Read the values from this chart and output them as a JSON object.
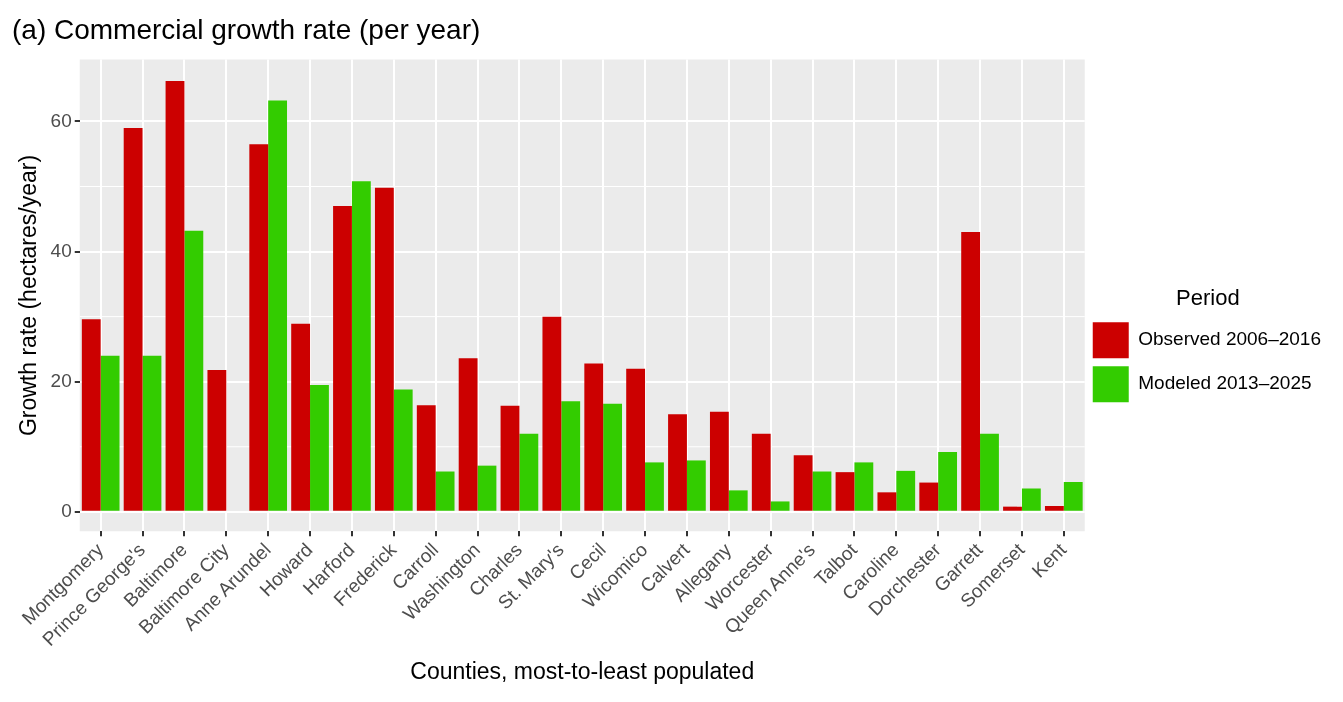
{
  "chart_data": {
    "type": "bar",
    "title": "(a) Commercial growth rate (per year)",
    "xlabel": "Counties, most-to-least populated",
    "ylabel": "Growth rate (hectares/year)",
    "legend_title": "Period",
    "categories": [
      "Montgomery",
      "Prince George's",
      "Baltimore",
      "Baltimore City",
      "Anne Arundel",
      "Howard",
      "Harford",
      "Frederick",
      "Carroll",
      "Washington",
      "Charles",
      "St. Mary's",
      "Cecil",
      "Wicomico",
      "Calvert",
      "Allegany",
      "Worcester",
      "Queen Anne's",
      "Talbot",
      "Caroline",
      "Dorchester",
      "Garrett",
      "Somerset",
      "Kent"
    ],
    "series": [
      {
        "name": "Observed 2006–2016",
        "color": "#cc0000",
        "values": [
          29.6,
          59,
          66.2,
          21.8,
          56.5,
          28.9,
          47,
          49.8,
          16.4,
          23.6,
          16.3,
          30,
          22.8,
          22,
          15,
          15.4,
          12,
          8.7,
          6.1,
          3,
          4.5,
          43,
          0.8,
          0.9
        ]
      },
      {
        "name": "Modeled 2013–2025",
        "color": "#33cc00",
        "values": [
          24,
          24,
          43.2,
          null,
          63.2,
          19.5,
          50.8,
          18.8,
          6.2,
          7.1,
          12,
          17,
          16.6,
          7.6,
          7.9,
          3.3,
          1.6,
          6.2,
          7.6,
          6.3,
          9.2,
          12,
          3.6,
          4.6
        ]
      }
    ],
    "ylim": [
      -3,
      69.5
    ],
    "yticks": [
      0,
      20,
      40,
      60
    ],
    "grid": true,
    "legend": "right"
  }
}
